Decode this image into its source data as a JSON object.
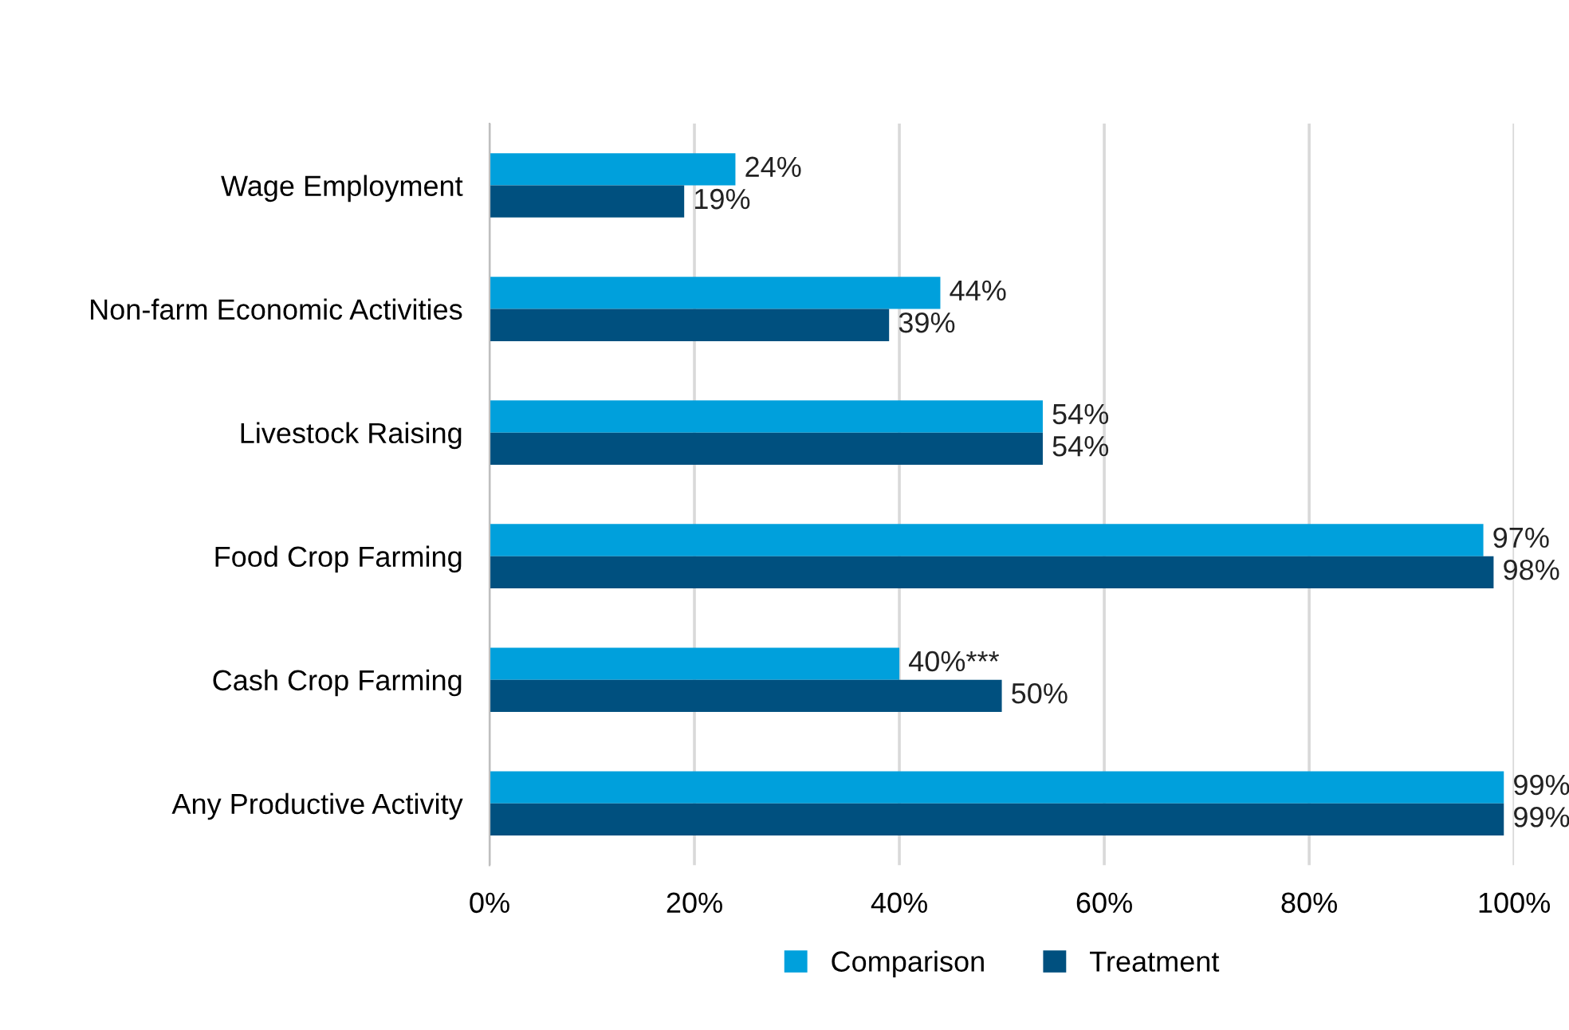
{
  "chart_data": {
    "type": "bar",
    "orientation": "horizontal",
    "categories": [
      "Wage Employment",
      "Non-farm Economic Activities",
      "Livestock Raising",
      "Food Crop Farming",
      "Cash Crop Farming",
      "Any Productive Activity"
    ],
    "series": [
      {
        "name": "Comparison",
        "color": "#00a0dc",
        "values": [
          24,
          44,
          54,
          97,
          40,
          99
        ],
        "value_labels": [
          "24%",
          "44%",
          "54%",
          "97%",
          "40%***",
          "99%"
        ]
      },
      {
        "name": "Treatment",
        "color": "#00507f",
        "values": [
          19,
          39,
          54,
          98,
          50,
          99
        ],
        "value_labels": [
          "19%",
          "39%",
          "54%",
          "98%",
          "50%",
          "99%"
        ]
      }
    ],
    "xlim": [
      0,
      100
    ],
    "xticks": [
      {
        "value": 0,
        "label": "0%"
      },
      {
        "value": 20,
        "label": "20%"
      },
      {
        "value": 40,
        "label": "40%"
      },
      {
        "value": 60,
        "label": "60%"
      },
      {
        "value": 80,
        "label": "80%"
      },
      {
        "value": 100,
        "label": "100%"
      }
    ],
    "grid": "x",
    "legend": "bottom"
  }
}
